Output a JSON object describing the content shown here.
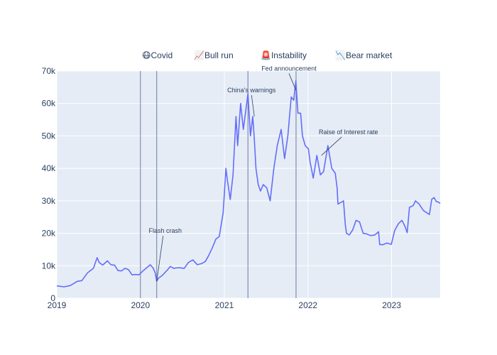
{
  "chart_data": {
    "type": "line",
    "title": "",
    "xlabel": "",
    "ylabel": "",
    "xlim": [
      "2019-01-01",
      "2023-08-01"
    ],
    "ylim": [
      0,
      70000
    ],
    "grid": true,
    "x_tick_labels": [
      "2019",
      "2020",
      "2021",
      "2022",
      "2023"
    ],
    "x_tick_dates": [
      "2019-01-01",
      "2020-01-01",
      "2021-01-01",
      "2022-01-01",
      "2023-01-01"
    ],
    "y_tick_labels": [
      "0",
      "10k",
      "20k",
      "30k",
      "40k",
      "50k",
      "60k",
      "70k"
    ],
    "y_tick_values": [
      0,
      10000,
      20000,
      30000,
      40000,
      50000,
      60000,
      70000
    ],
    "line_color": "#636efa",
    "plot_bg": "#e5ecf6",
    "series": [
      {
        "x": [
          "2019-01-01",
          "2019-02-01",
          "2019-03-01",
          "2019-04-01",
          "2019-04-20",
          "2019-05-15",
          "2019-06-10",
          "2019-06-26",
          "2019-07-05",
          "2019-07-20",
          "2019-08-10",
          "2019-08-25",
          "2019-09-10",
          "2019-09-25",
          "2019-10-10",
          "2019-10-26",
          "2019-11-10",
          "2019-11-25",
          "2019-12-10",
          "2019-12-25",
          "2020-01-15",
          "2020-02-13",
          "2020-02-25",
          "2020-03-05",
          "2020-03-12",
          "2020-03-20",
          "2020-04-05",
          "2020-04-29",
          "2020-05-10",
          "2020-05-25",
          "2020-06-15",
          "2020-07-10",
          "2020-07-28",
          "2020-08-17",
          "2020-09-05",
          "2020-09-25",
          "2020-10-10",
          "2020-10-25",
          "2020-11-10",
          "2020-11-25",
          "2020-12-10",
          "2020-12-27",
          "2021-01-08",
          "2021-01-15",
          "2021-01-27",
          "2021-02-08",
          "2021-02-21",
          "2021-02-28",
          "2021-03-13",
          "2021-03-25",
          "2021-04-05",
          "2021-04-14",
          "2021-04-25",
          "2021-05-05",
          "2021-05-12",
          "2021-05-19",
          "2021-05-29",
          "2021-06-08",
          "2021-06-20",
          "2021-07-05",
          "2021-07-20",
          "2021-08-05",
          "2021-08-20",
          "2021-09-06",
          "2021-09-21",
          "2021-10-05",
          "2021-10-20",
          "2021-10-31",
          "2021-11-09",
          "2021-11-18",
          "2021-11-30",
          "2021-12-08",
          "2021-12-20",
          "2022-01-03",
          "2022-01-10",
          "2022-01-24",
          "2022-02-09",
          "2022-02-24",
          "2022-03-10",
          "2022-03-29",
          "2022-04-15",
          "2022-04-30",
          "2022-05-08",
          "2022-05-12",
          "2022-05-25",
          "2022-06-05",
          "2022-06-13",
          "2022-06-18",
          "2022-06-30",
          "2022-07-15",
          "2022-07-30",
          "2022-08-14",
          "2022-08-30",
          "2022-09-15",
          "2022-10-01",
          "2022-10-20",
          "2022-11-05",
          "2022-11-10",
          "2022-11-25",
          "2022-12-10",
          "2022-12-31",
          "2023-01-14",
          "2023-01-31",
          "2023-02-15",
          "2023-03-01",
          "2023-03-10",
          "2023-03-20",
          "2023-04-05",
          "2023-04-15",
          "2023-05-01",
          "2023-05-20",
          "2023-06-10",
          "2023-06-15",
          "2023-06-25",
          "2023-07-05",
          "2023-07-15",
          "2023-07-25",
          "2023-08-01"
        ],
        "y": [
          3800,
          3500,
          3900,
          5200,
          5400,
          7800,
          9200,
          12500,
          11000,
          10200,
          11500,
          10300,
          10200,
          8500,
          8400,
          9200,
          8800,
          7200,
          7300,
          7200,
          8600,
          10300,
          9300,
          7900,
          5200,
          6200,
          7000,
          8800,
          9800,
          9200,
          9400,
          9200,
          11000,
          11800,
          10300,
          10700,
          11300,
          13200,
          15600,
          18200,
          19000,
          26300,
          40000,
          36000,
          30400,
          38000,
          56000,
          47000,
          60000,
          52000,
          58000,
          63000,
          50000,
          56000,
          49000,
          40000,
          35000,
          33000,
          35000,
          34000,
          30000,
          40000,
          47000,
          52000,
          43000,
          50000,
          62000,
          61000,
          67000,
          57000,
          57000,
          50000,
          47000,
          46000,
          42000,
          37000,
          44000,
          38000,
          39000,
          47000,
          40000,
          38500,
          34000,
          29000,
          29500,
          30000,
          22500,
          20000,
          19500,
          21000,
          24000,
          23500,
          20000,
          19800,
          19300,
          19500,
          20500,
          16500,
          16500,
          17000,
          16600,
          20800,
          23000,
          24000,
          22000,
          20200,
          28000,
          28500,
          30000,
          29000,
          27000,
          26000,
          25800,
          30500,
          31000,
          29800,
          29600,
          29200
        ]
      }
    ],
    "legend": {
      "placement": "top",
      "entries": [
        "😷Covid",
        "📈Bull run",
        "🚨Instability",
        "📉Bear market"
      ]
    },
    "annotations": [
      {
        "text": "Flash crash",
        "x": "2020-03-12",
        "y": 5200
      },
      {
        "text": "China's warnings",
        "x": "2021-05-12",
        "y": 56000
      },
      {
        "text": "Fed announcement",
        "x": "2021-11-10",
        "y": 64000
      },
      {
        "text": "Raise of Interest rate",
        "x": "2022-03-01",
        "y": 44000
      }
    ],
    "vertical_lines": [
      "2020-01-01",
      "2020-03-12",
      "2021-04-14",
      "2021-11-10"
    ]
  }
}
